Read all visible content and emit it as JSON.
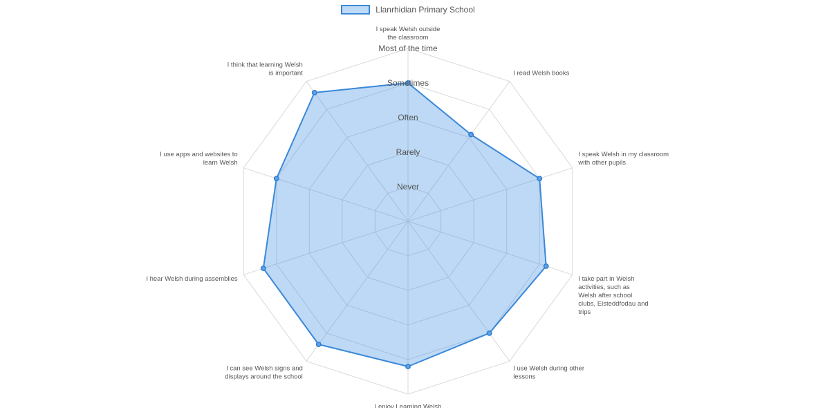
{
  "chart_data": {
    "type": "radar",
    "legend_position": "top-center",
    "categories": [
      "I speak Welsh outside the classroom",
      "I read Welsh books",
      "I speak Welsh in my classroom with other pupils",
      "I take part in Welsh activities, such as Welsh after school clubs, Eisteddfodau and trips",
      "I use Welsh during other lessons",
      "I enjoy Learning Welsh",
      "I can see Welsh signs and displays around the school",
      "I hear Welsh during assemblies",
      "I use apps and websites to learn Welsh",
      "I think that learning Welsh is important"
    ],
    "scale_labels": [
      "Never",
      "Rarely",
      "Often",
      "Sometimes",
      "Most of the time"
    ],
    "r_range": [
      0,
      5
    ],
    "series": [
      {
        "name": "Llanrhidian Primary School",
        "color": "#3a88d8",
        "values": [
          4.0,
          3.1,
          4.0,
          4.2,
          4.0,
          4.2,
          4.4,
          4.4,
          4.0,
          4.6
        ]
      }
    ]
  }
}
